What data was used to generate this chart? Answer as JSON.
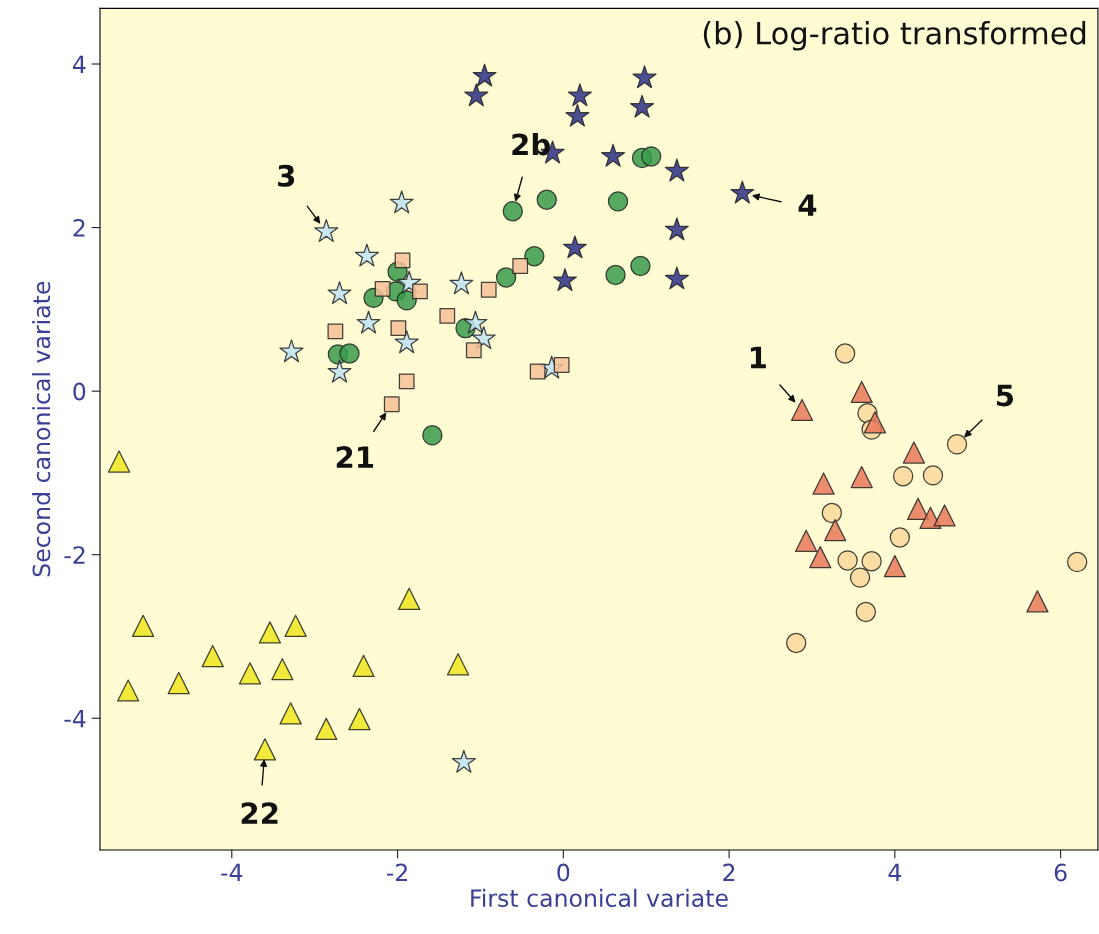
{
  "chart_data": {
    "type": "scatter",
    "title": "(b) Log-ratio transformed",
    "xlabel": "First canonical variate",
    "ylabel": "Second canonical variate",
    "xlim": [
      -5.59,
      6.45
    ],
    "ylim": [
      -5.61,
      4.68
    ],
    "xticks": [
      -4,
      -2,
      0,
      2,
      4,
      6
    ],
    "yticks": [
      -4,
      -2,
      0,
      2,
      4
    ],
    "grid": false,
    "legend": false,
    "series": [
      {
        "marker": "star",
        "color": "#2b2f86",
        "x": [
          -1.05,
          -0.95,
          -0.13,
          0.2,
          0.17,
          0.6,
          0.98,
          0.95,
          1.37,
          1.37,
          1.37,
          0.14,
          0.02,
          2.16
        ],
        "values": [
          3.61,
          3.85,
          2.91,
          3.61,
          3.36,
          2.87,
          3.83,
          3.47,
          2.69,
          1.97,
          1.37,
          1.75,
          1.35,
          2.42
        ]
      },
      {
        "marker": "circle",
        "color": "#3a9a4b",
        "x": [
          0.95,
          1.06,
          -0.2,
          -0.61,
          0.66,
          -0.35,
          -0.69,
          0.63,
          0.93,
          -2.0,
          -2.02,
          -1.89,
          -2.29,
          -1.18,
          -2.72,
          -2.58,
          -1.58
        ],
        "values": [
          2.85,
          2.87,
          2.34,
          2.2,
          2.32,
          1.65,
          1.39,
          1.42,
          1.53,
          1.46,
          1.22,
          1.11,
          1.14,
          0.77,
          0.45,
          0.46,
          -0.54
        ]
      },
      {
        "marker": "star",
        "color": "#bfe3f5",
        "x": [
          -1.95,
          -2.86,
          -2.37,
          -1.86,
          -2.7,
          -1.23,
          -2.35,
          -1.06,
          -0.96,
          -1.89,
          -3.28,
          -2.7,
          -0.14,
          -1.2
        ],
        "values": [
          2.3,
          1.95,
          1.65,
          1.32,
          1.19,
          1.31,
          0.83,
          0.83,
          0.64,
          0.59,
          0.48,
          0.23,
          0.28,
          -4.54
        ]
      },
      {
        "marker": "square",
        "color": "#f6bf97",
        "x": [
          -1.94,
          -2.18,
          -1.73,
          -0.9,
          -0.52,
          -1.4,
          -2.75,
          -1.99,
          -1.08,
          -0.31,
          -0.02,
          -1.89,
          -2.07
        ],
        "values": [
          1.6,
          1.25,
          1.22,
          1.24,
          1.53,
          0.92,
          0.73,
          0.77,
          0.5,
          0.24,
          0.32,
          0.12,
          -0.16
        ]
      },
      {
        "marker": "circle",
        "color": "#fbd79a",
        "x": [
          3.4,
          3.67,
          3.72,
          4.75,
          4.1,
          4.46,
          3.24,
          4.06,
          3.43,
          3.72,
          3.58,
          6.2,
          3.65,
          2.81
        ],
        "values": [
          0.46,
          -0.27,
          -0.47,
          -0.65,
          -1.04,
          -1.03,
          -1.49,
          -1.79,
          -2.07,
          -2.08,
          -2.28,
          -2.09,
          -2.7,
          -3.08
        ]
      },
      {
        "marker": "triangle",
        "color": "#e8785a",
        "x": [
          2.88,
          3.6,
          3.76,
          4.23,
          3.6,
          3.14,
          4.28,
          4.43,
          4.6,
          3.28,
          2.93,
          3.1,
          4.0,
          5.72
        ],
        "values": [
          -0.23,
          -0.01,
          -0.38,
          -0.75,
          -1.05,
          -1.13,
          -1.44,
          -1.55,
          -1.52,
          -1.7,
          -1.83,
          -2.03,
          -2.14,
          -2.57
        ]
      },
      {
        "marker": "triangle",
        "color": "#f0e61e",
        "x": [
          -5.36,
          -5.07,
          -5.25,
          -4.64,
          -4.23,
          -3.78,
          -3.54,
          -3.39,
          -3.23,
          -3.29,
          -3.6,
          -2.86,
          -2.46,
          -2.41,
          -1.86,
          -1.27
        ],
        "values": [
          -0.86,
          -2.87,
          -3.66,
          -3.57,
          -3.24,
          -3.45,
          -2.95,
          -3.4,
          -2.87,
          -3.94,
          -4.38,
          -4.13,
          -4.01,
          -3.36,
          -2.54,
          -3.34
        ]
      }
    ],
    "annotations": [
      {
        "text": "3",
        "x": -2.86,
        "y": 1.95
      },
      {
        "text": "2b",
        "x": -0.61,
        "y": 2.2
      },
      {
        "text": "4",
        "x": 2.16,
        "y": 2.42
      },
      {
        "text": "1",
        "x": 2.88,
        "y": -0.23
      },
      {
        "text": "5",
        "x": 4.75,
        "y": -0.65
      },
      {
        "text": "21",
        "x": -2.07,
        "y": -0.16
      },
      {
        "text": "22",
        "x": -3.6,
        "y": -4.38
      }
    ]
  }
}
